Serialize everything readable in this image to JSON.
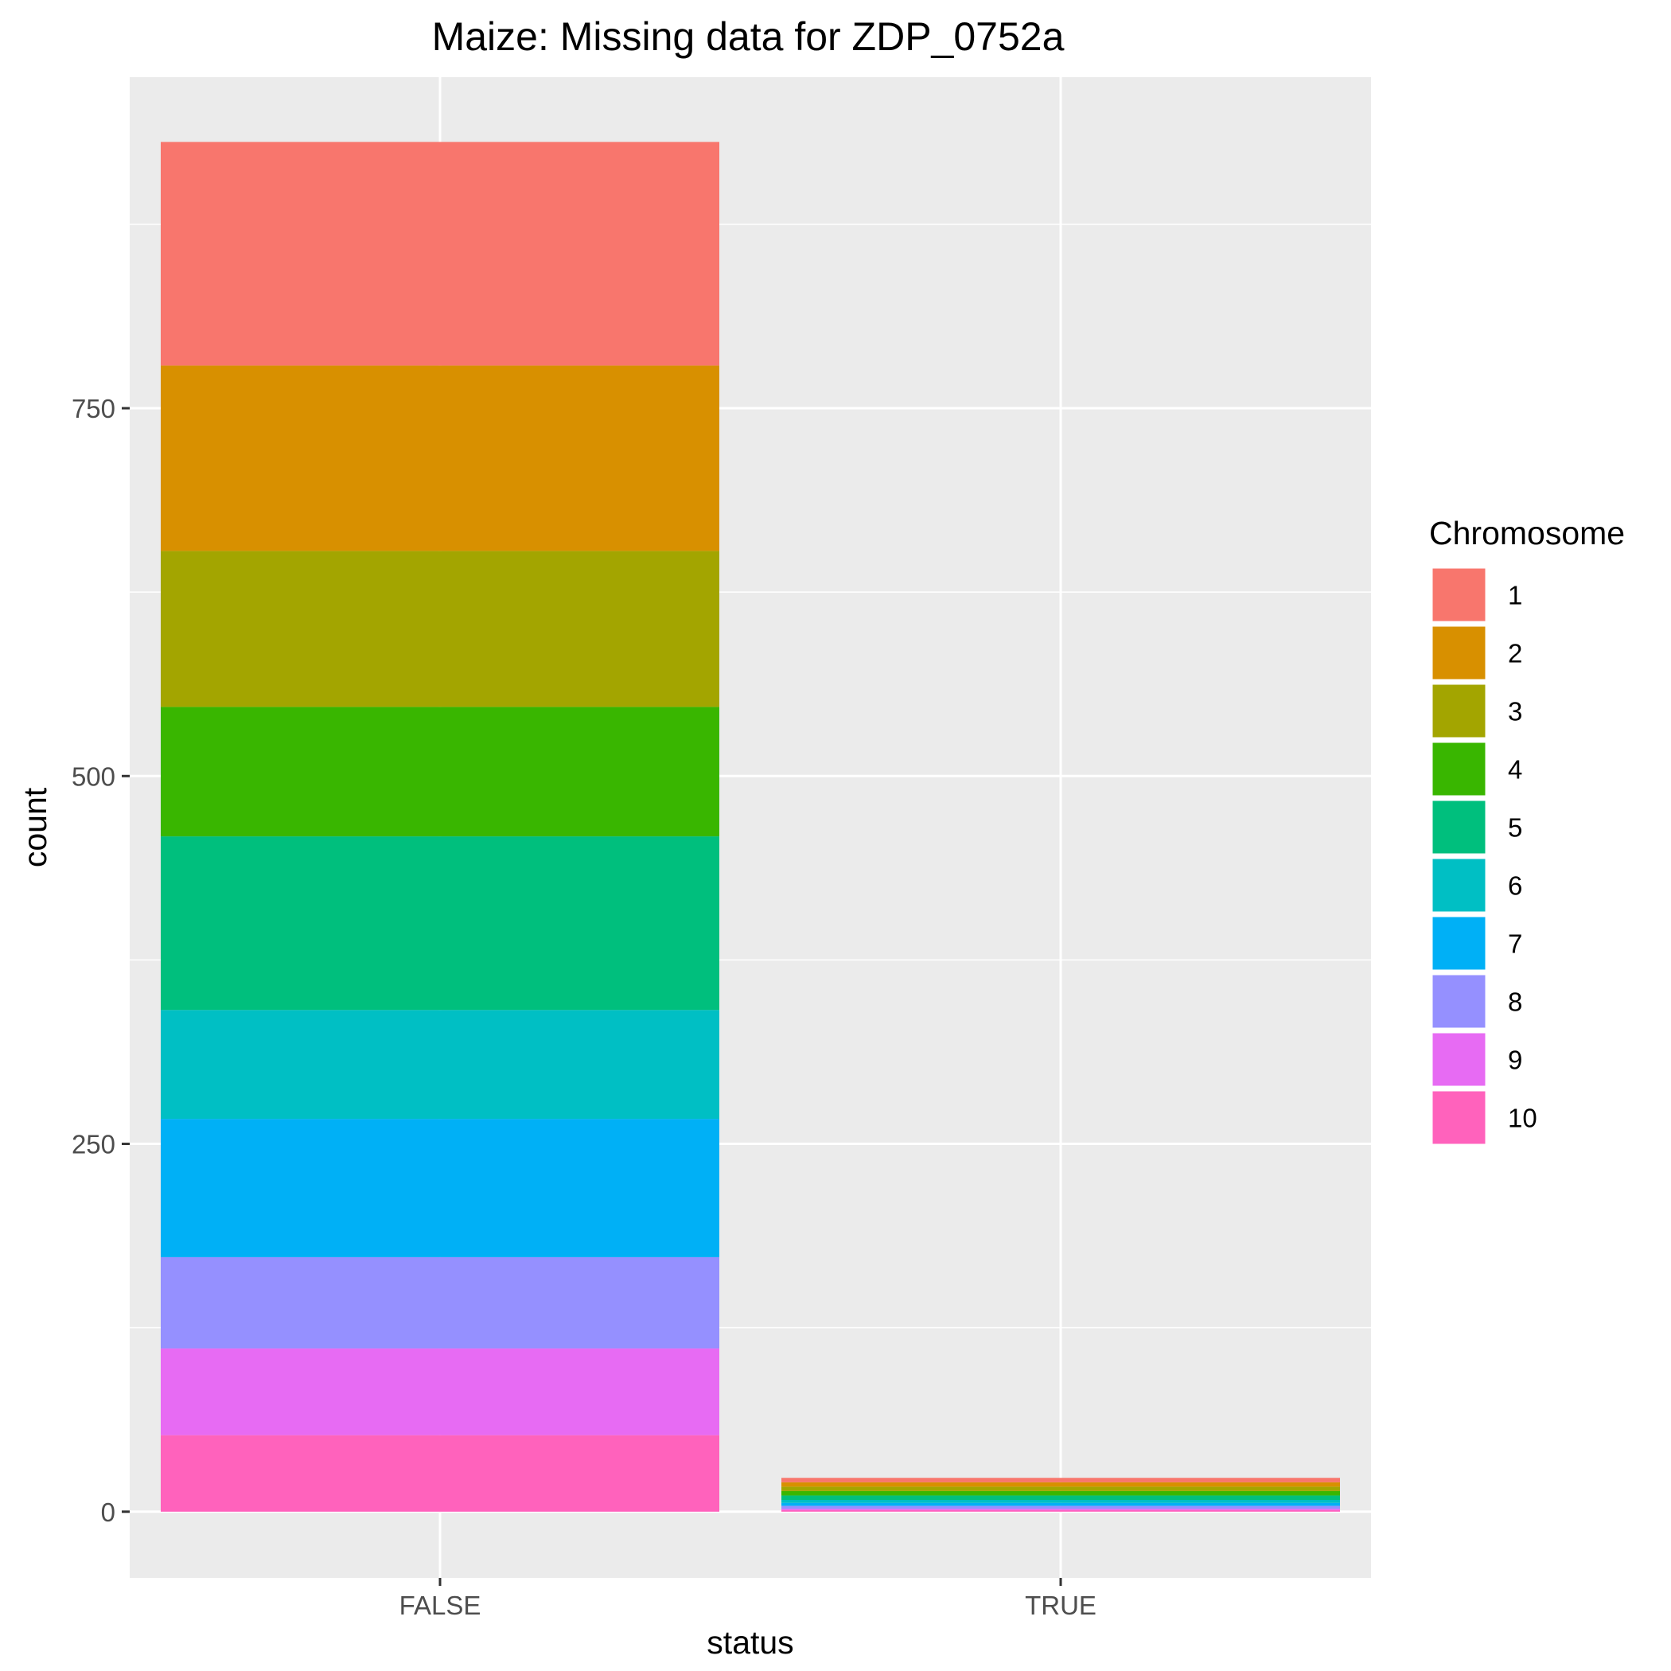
{
  "chart_data": {
    "type": "bar",
    "stacked": true,
    "title": "Maize: Missing data for ZDP_0752a",
    "xlabel": "status",
    "ylabel": "count",
    "categories": [
      "FALSE",
      "TRUE"
    ],
    "ylim": [
      -45,
      975
    ],
    "yticks": [
      0,
      250,
      500,
      750
    ],
    "grid": true,
    "legend": {
      "title": "Chromosome",
      "position": "right"
    },
    "series": [
      {
        "name": "1",
        "color": "#F8766D",
        "values": [
          152,
          3
        ]
      },
      {
        "name": "2",
        "color": "#D89000",
        "values": [
          126,
          3
        ]
      },
      {
        "name": "3",
        "color": "#A3A500",
        "values": [
          106,
          3
        ]
      },
      {
        "name": "4",
        "color": "#39B600",
        "values": [
          88,
          3
        ]
      },
      {
        "name": "5",
        "color": "#00BF7D",
        "values": [
          118,
          3
        ]
      },
      {
        "name": "6",
        "color": "#00BFC4",
        "values": [
          74,
          2
        ]
      },
      {
        "name": "7",
        "color": "#00B0F6",
        "values": [
          94,
          2
        ]
      },
      {
        "name": "8",
        "color": "#9590FF",
        "values": [
          62,
          2
        ]
      },
      {
        "name": "9",
        "color": "#E76BF3",
        "values": [
          59,
          1
        ]
      },
      {
        "name": "10",
        "color": "#FF62BC",
        "values": [
          52,
          1
        ]
      }
    ]
  }
}
